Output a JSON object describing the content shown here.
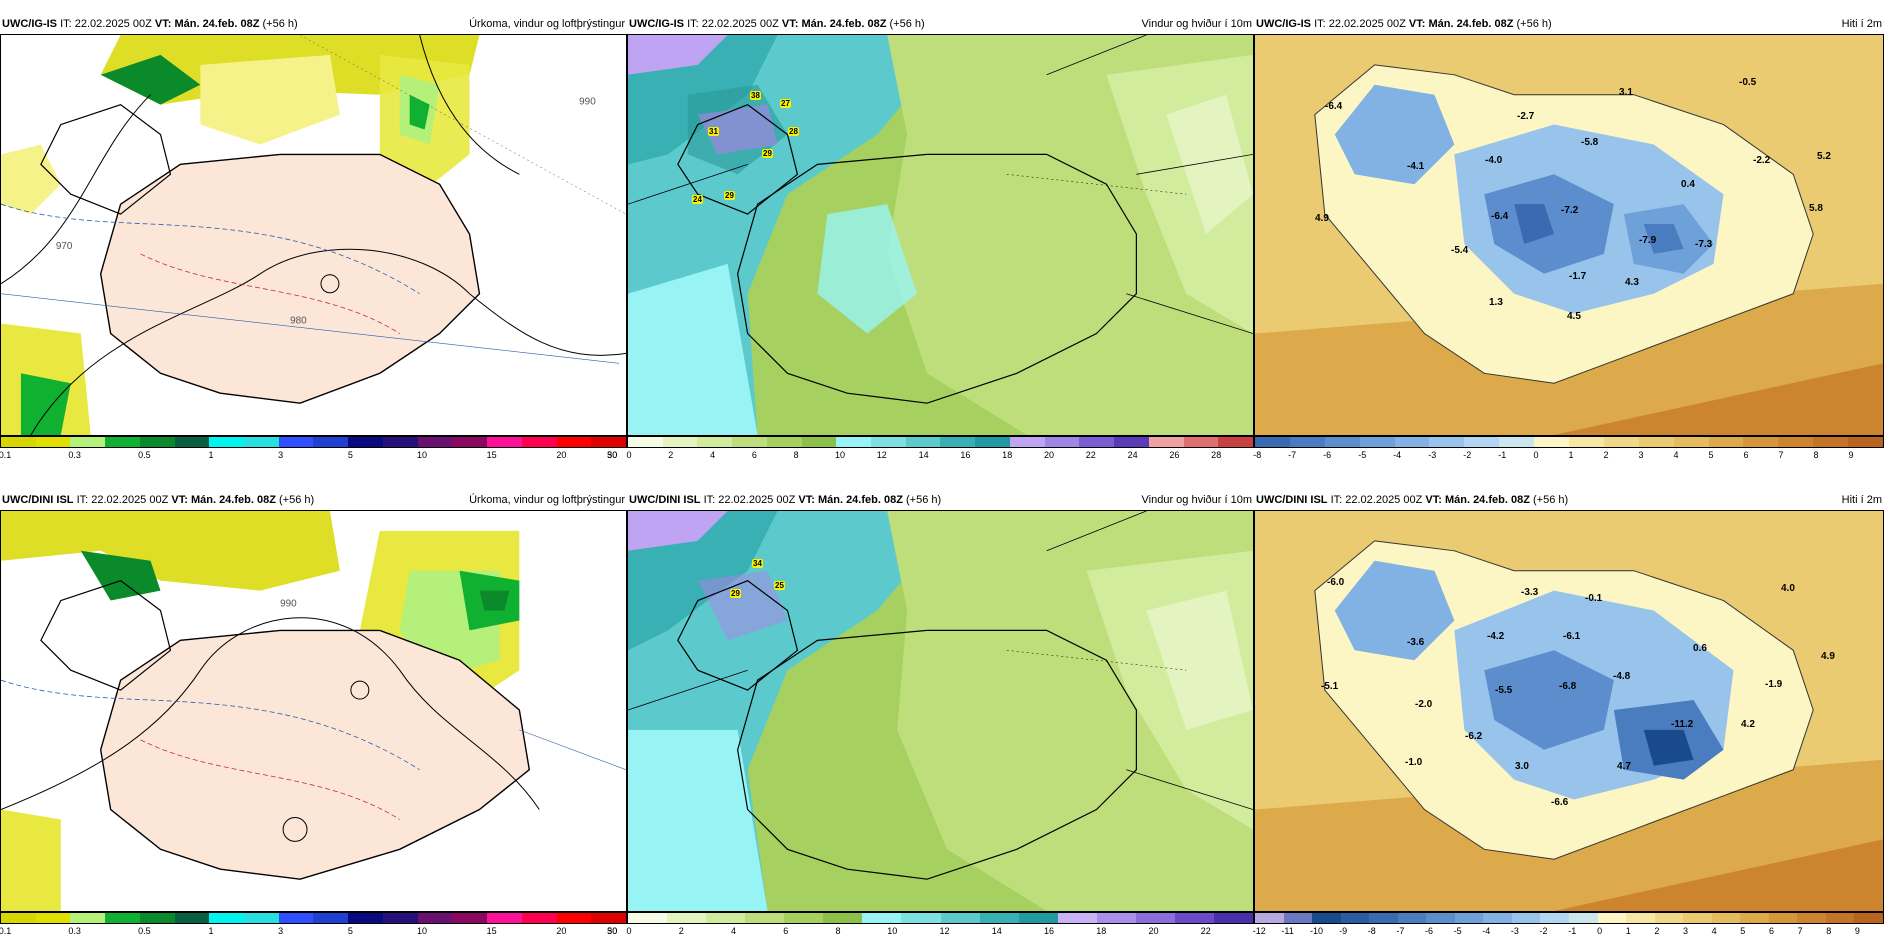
{
  "rows": [
    {
      "model": "UWC/IG-IS",
      "it_label": "IT:",
      "it_value": "22.02.2025 00Z",
      "vt_label": "VT:",
      "vt_value": "Mán. 24.feb. 08Z",
      "lead": "(+56 h)"
    },
    {
      "model": "UWC/DINI ISL",
      "it_label": "IT:",
      "it_value": "22.02.2025 00Z",
      "vt_label": "VT:",
      "vt_value": "Mán. 24.feb. 08Z",
      "lead": "(+56 h)"
    }
  ],
  "products": {
    "precip": "Úrkoma, vindur og loftþrýstingur",
    "wind": "Vindur og hviður í 10m",
    "temp": "Hiti í 2m"
  },
  "colorbars": {
    "precip": {
      "colors": [
        "#d6d600",
        "#e0e000",
        "#b4f07a",
        "#10b030",
        "#0a8a2a",
        "#086040",
        "#00f4f0",
        "#28e0e0",
        "#3050ff",
        "#2040d0",
        "#0a0a80",
        "#28107a",
        "#6a1070",
        "#8a0860",
        "#ff1098",
        "#ff0050",
        "#ff0000",
        "#e00000"
      ],
      "ticks": [
        "0.1",
        "0.3",
        "0.5",
        "1",
        "3",
        "5",
        "10",
        "15",
        "20",
        "30",
        "50"
      ]
    },
    "wind_top": {
      "colors": [
        "#f6fbe6",
        "#e4f4c0",
        "#d2ec9e",
        "#bede7c",
        "#a6d060",
        "#8cc048",
        "#98f4f4",
        "#7ee0e0",
        "#5ccacc",
        "#38b0b4",
        "#1e9aa0",
        "#bea4f2",
        "#9e86e6",
        "#7a5ed4",
        "#5a3ab8",
        "#f0a0a0",
        "#e07070",
        "#c84040"
      ],
      "ticks": [
        "0",
        "2",
        "4",
        "6",
        "8",
        "10",
        "12",
        "14",
        "16",
        "18",
        "20",
        "22",
        "24",
        "26",
        "28"
      ]
    },
    "wind_bottom": {
      "colors": [
        "#f6fbe6",
        "#e4f4c0",
        "#d2ec9e",
        "#bede7c",
        "#a6d060",
        "#8cc048",
        "#98f4f4",
        "#7ee0e0",
        "#5ccacc",
        "#38b0b4",
        "#1e9aa0",
        "#c6b2f4",
        "#a890ea",
        "#8a6edc",
        "#6a4cc8",
        "#4a30a8"
      ],
      "ticks": [
        "0",
        "2",
        "4",
        "6",
        "8",
        "10",
        "12",
        "14",
        "16",
        "18",
        "20",
        "22"
      ]
    },
    "temp_top": {
      "colors": [
        "#3a6ab2",
        "#4a7cc0",
        "#5c8ece",
        "#6ea0da",
        "#82b2e4",
        "#98c4ec",
        "#b0d6f2",
        "#cce6ee",
        "#fbf6c4",
        "#f6e8a4",
        "#f0d888",
        "#eacb72",
        "#e4bc5e",
        "#dcaa4a",
        "#d4963a",
        "#cc842e",
        "#c47426",
        "#b8641e"
      ],
      "ticks": [
        "-8",
        "-7",
        "-6",
        "-5",
        "-4",
        "-3",
        "-2",
        "-1",
        "0",
        "1",
        "2",
        "3",
        "4",
        "5",
        "6",
        "7",
        "8",
        "9"
      ]
    },
    "temp_bottom": {
      "colors": [
        "#b8a8e0",
        "#6a78c4",
        "#1a4a8e",
        "#2a5ca4",
        "#3a6ab2",
        "#4a7cc0",
        "#5c8ece",
        "#6ea0da",
        "#82b2e4",
        "#98c4ec",
        "#b0d6f2",
        "#cce6ee",
        "#fbf6c4",
        "#f6e8a4",
        "#f0d888",
        "#eacb72",
        "#e4bc5e",
        "#dcaa4a",
        "#d4963a",
        "#cc842e",
        "#c47426",
        "#b8641e"
      ],
      "ticks": [
        "-12",
        "-11",
        "-10",
        "-9",
        "-8",
        "-7",
        "-6",
        "-5",
        "-4",
        "-3",
        "-2",
        "-1",
        "0",
        "1",
        "2",
        "3",
        "4",
        "5",
        "6",
        "7",
        "8",
        "9"
      ]
    }
  },
  "temp_labels": {
    "top": [
      "-6.4",
      "-4.1",
      "4.9",
      "-2.7",
      "3.1",
      "-5.8",
      "-4.0",
      "-6.4",
      "-7.2",
      "-5.4",
      "-7.9",
      "-7.3",
      "0.4",
      "-2.2",
      "5.2",
      "-0.5",
      "5.8",
      "-1.7",
      "4.3",
      "1.3",
      "4.5"
    ],
    "bottom": [
      "-6.0",
      "-3.6",
      "-5.1",
      "-3.3",
      "-0.1",
      "-4.2",
      "-6.1",
      "-2.0",
      "-5.5",
      "-6.8",
      "-4.8",
      "0.6",
      "4.0",
      "4.9",
      "-1.9",
      "-6.2",
      "-11.2",
      "4.2",
      "-1.0",
      "3.0",
      "4.7",
      "-6.6"
    ]
  },
  "gust_labels": {
    "top": [
      "38",
      "27",
      "31",
      "28",
      "29",
      "24",
      "29"
    ],
    "bottom": [
      "34",
      "29",
      "25"
    ]
  },
  "isobar_labels": [
    "970",
    "980",
    "990"
  ]
}
